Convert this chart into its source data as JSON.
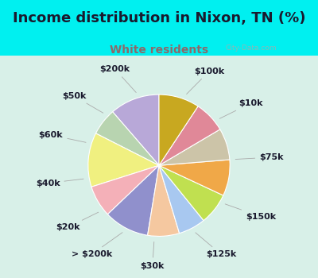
{
  "title": "Income distribution in Nixon, TN (%)",
  "subtitle": "White residents",
  "title_color": "#1a1a2e",
  "subtitle_color": "#8B6A6A",
  "background_top": "#00f0f0",
  "background_chart_left": "#e0f5ef",
  "labels": [
    "$100k",
    "$10k",
    "$75k",
    "$150k",
    "$125k",
    "$30k",
    "> $200k",
    "$20k",
    "$40k",
    "$60k",
    "$50k",
    "$200k"
  ],
  "values": [
    11,
    6,
    12,
    7,
    10,
    7,
    6,
    7,
    8,
    7,
    7,
    9
  ],
  "colors": [
    "#b8a8d8",
    "#b8d4b0",
    "#f0f080",
    "#f4b0b8",
    "#9090cc",
    "#f5c8a0",
    "#a8c8f0",
    "#c0e050",
    "#f0a848",
    "#ccc4a8",
    "#e08898",
    "#c8a820"
  ],
  "label_fontsize": 8,
  "title_fontsize": 13,
  "subtitle_fontsize": 10,
  "startangle": 90
}
